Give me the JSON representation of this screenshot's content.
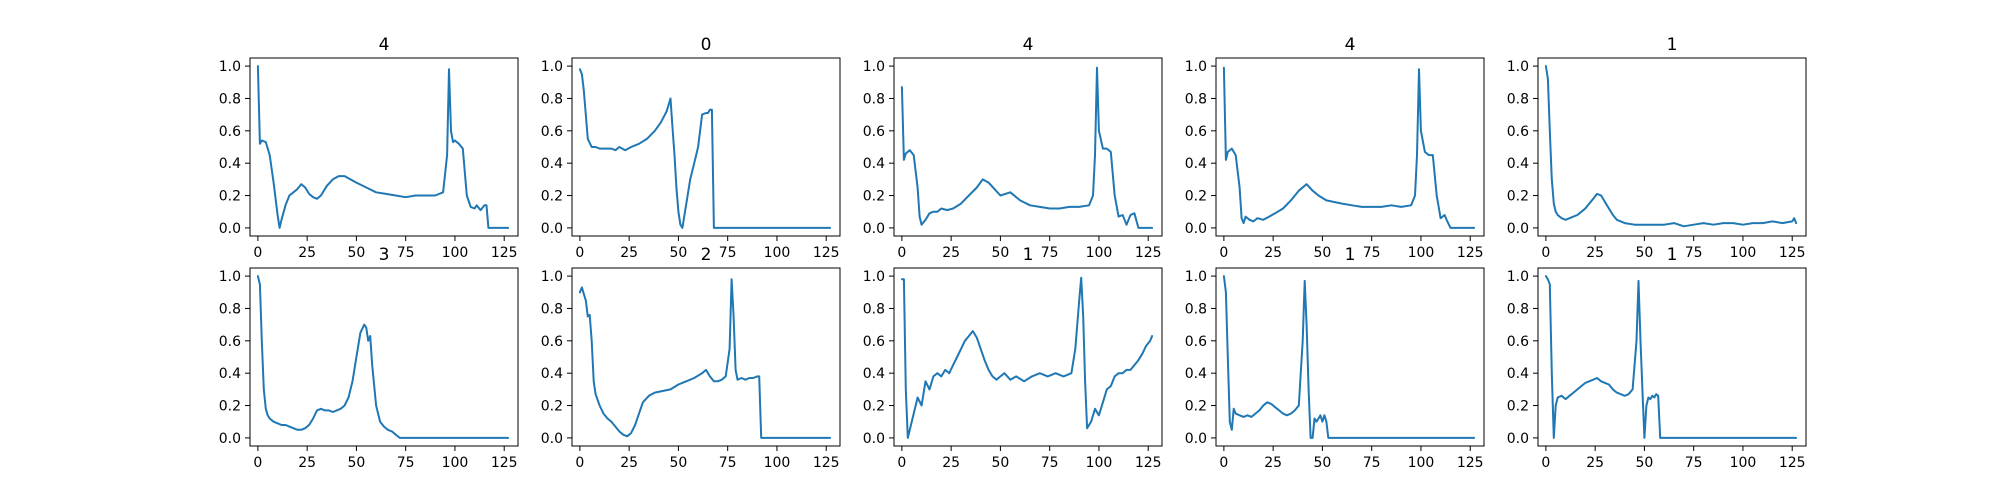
{
  "colors": {
    "series": "#1f77b4",
    "axes": "#000000",
    "background": "#ffffff"
  },
  "chart_data": {
    "type": "line",
    "layout": "grid 2 rows x 5 columns of small multiples",
    "grid": false,
    "shared_axes": {
      "xlim": [
        -4,
        132
      ],
      "ylim": [
        -0.05,
        1.05
      ],
      "xticks": [
        0,
        25,
        50,
        75,
        100,
        125
      ],
      "yticks": [
        0.0,
        0.2,
        0.4,
        0.6,
        0.8,
        1.0
      ],
      "xtick_labels": [
        "0",
        "25",
        "50",
        "75",
        "100",
        "125"
      ],
      "ytick_labels": [
        "0.0",
        "0.2",
        "0.4",
        "0.6",
        "0.8",
        "1.0"
      ]
    },
    "panels": [
      {
        "title": "4",
        "x": [
          0,
          1,
          2,
          4,
          6,
          8,
          10,
          11,
          12,
          14,
          16,
          18,
          20,
          22,
          24,
          26,
          28,
          30,
          32,
          35,
          38,
          41,
          44,
          47,
          50,
          55,
          60,
          65,
          70,
          75,
          80,
          85,
          90,
          94,
          96,
          97,
          98,
          99,
          100,
          102,
          104,
          106,
          108,
          110,
          111,
          113,
          115,
          116,
          117,
          119,
          122,
          125,
          127
        ],
        "values": [
          1.0,
          0.52,
          0.54,
          0.53,
          0.45,
          0.28,
          0.08,
          0.0,
          0.05,
          0.14,
          0.2,
          0.22,
          0.24,
          0.27,
          0.25,
          0.21,
          0.19,
          0.18,
          0.2,
          0.26,
          0.3,
          0.32,
          0.32,
          0.3,
          0.28,
          0.25,
          0.22,
          0.21,
          0.2,
          0.19,
          0.2,
          0.2,
          0.2,
          0.22,
          0.45,
          0.98,
          0.6,
          0.53,
          0.54,
          0.52,
          0.49,
          0.2,
          0.13,
          0.12,
          0.14,
          0.11,
          0.14,
          0.14,
          0.0,
          0.0,
          0.0,
          0.0,
          0.0
        ]
      },
      {
        "title": "0",
        "x": [
          0,
          1,
          2,
          3,
          4,
          6,
          8,
          10,
          13,
          16,
          18,
          20,
          23,
          26,
          30,
          34,
          38,
          41,
          44,
          46,
          47,
          48,
          49,
          50,
          51,
          52,
          54,
          56,
          58,
          60,
          61,
          62,
          64,
          65,
          66,
          67,
          68,
          70,
          75,
          80,
          90,
          100,
          110,
          120,
          127
        ],
        "values": [
          0.98,
          0.95,
          0.85,
          0.7,
          0.55,
          0.5,
          0.5,
          0.49,
          0.49,
          0.49,
          0.48,
          0.5,
          0.48,
          0.5,
          0.52,
          0.55,
          0.6,
          0.65,
          0.72,
          0.8,
          0.62,
          0.45,
          0.25,
          0.1,
          0.02,
          0.0,
          0.15,
          0.3,
          0.4,
          0.5,
          0.6,
          0.7,
          0.71,
          0.71,
          0.73,
          0.73,
          0.0,
          0.0,
          0.0,
          0.0,
          0.0,
          0.0,
          0.0,
          0.0,
          0.0
        ]
      },
      {
        "title": "4",
        "x": [
          0,
          1,
          2,
          4,
          6,
          8,
          9,
          10,
          12,
          14,
          16,
          18,
          20,
          23,
          26,
          30,
          34,
          38,
          41,
          44,
          47,
          50,
          55,
          60,
          65,
          70,
          75,
          80,
          85,
          90,
          95,
          97,
          98,
          99,
          100,
          102,
          104,
          106,
          108,
          110,
          112,
          113,
          114,
          116,
          118,
          120,
          122,
          125,
          127
        ],
        "values": [
          0.87,
          0.42,
          0.46,
          0.48,
          0.45,
          0.25,
          0.07,
          0.02,
          0.05,
          0.09,
          0.1,
          0.1,
          0.12,
          0.11,
          0.12,
          0.15,
          0.2,
          0.25,
          0.3,
          0.28,
          0.24,
          0.2,
          0.22,
          0.17,
          0.14,
          0.13,
          0.12,
          0.12,
          0.13,
          0.13,
          0.14,
          0.2,
          0.45,
          0.99,
          0.6,
          0.49,
          0.49,
          0.47,
          0.2,
          0.07,
          0.08,
          0.05,
          0.02,
          0.08,
          0.09,
          0.0,
          0.0,
          0.0,
          0.0
        ]
      },
      {
        "title": "4",
        "x": [
          0,
          1,
          2,
          4,
          6,
          8,
          9,
          10,
          11,
          13,
          15,
          17,
          20,
          23,
          26,
          30,
          34,
          38,
          42,
          45,
          48,
          52,
          56,
          60,
          65,
          70,
          75,
          80,
          85,
          90,
          95,
          97,
          98,
          99,
          100,
          102,
          104,
          106,
          108,
          110,
          112,
          113,
          115,
          117,
          119,
          122,
          125,
          127
        ],
        "values": [
          0.99,
          0.42,
          0.47,
          0.49,
          0.45,
          0.25,
          0.06,
          0.03,
          0.07,
          0.05,
          0.04,
          0.06,
          0.05,
          0.07,
          0.09,
          0.12,
          0.17,
          0.23,
          0.27,
          0.23,
          0.2,
          0.17,
          0.16,
          0.15,
          0.14,
          0.13,
          0.13,
          0.13,
          0.14,
          0.13,
          0.14,
          0.2,
          0.45,
          0.98,
          0.6,
          0.47,
          0.45,
          0.45,
          0.2,
          0.06,
          0.08,
          0.05,
          0.0,
          0.0,
          0.0,
          0.0,
          0.0,
          0.0
        ]
      },
      {
        "title": "1",
        "x": [
          0,
          1,
          2,
          3,
          4,
          5,
          6,
          8,
          10,
          12,
          14,
          16,
          18,
          20,
          22,
          24,
          26,
          28,
          30,
          32,
          34,
          36,
          38,
          40,
          45,
          50,
          55,
          60,
          65,
          70,
          75,
          80,
          85,
          90,
          95,
          100,
          105,
          110,
          115,
          120,
          125,
          126,
          127
        ],
        "values": [
          1.0,
          0.92,
          0.6,
          0.3,
          0.15,
          0.1,
          0.08,
          0.06,
          0.05,
          0.06,
          0.07,
          0.08,
          0.1,
          0.12,
          0.15,
          0.18,
          0.21,
          0.2,
          0.16,
          0.12,
          0.08,
          0.05,
          0.04,
          0.03,
          0.02,
          0.02,
          0.02,
          0.02,
          0.03,
          0.01,
          0.02,
          0.03,
          0.02,
          0.03,
          0.03,
          0.02,
          0.03,
          0.03,
          0.04,
          0.03,
          0.04,
          0.06,
          0.03
        ]
      },
      {
        "title": "3",
        "x": [
          0,
          1,
          2,
          3,
          4,
          5,
          6,
          8,
          10,
          12,
          14,
          16,
          18,
          20,
          22,
          24,
          26,
          28,
          30,
          32,
          34,
          36,
          38,
          40,
          42,
          44,
          46,
          48,
          50,
          52,
          54,
          55,
          56,
          57,
          58,
          60,
          62,
          64,
          66,
          68,
          70,
          72,
          75,
          80,
          90,
          100,
          110,
          120,
          127
        ],
        "values": [
          1.0,
          0.95,
          0.6,
          0.3,
          0.18,
          0.14,
          0.12,
          0.1,
          0.09,
          0.08,
          0.08,
          0.07,
          0.06,
          0.05,
          0.05,
          0.06,
          0.08,
          0.12,
          0.17,
          0.18,
          0.17,
          0.17,
          0.16,
          0.17,
          0.18,
          0.2,
          0.25,
          0.35,
          0.5,
          0.65,
          0.7,
          0.68,
          0.6,
          0.63,
          0.45,
          0.2,
          0.1,
          0.07,
          0.05,
          0.04,
          0.02,
          0.0,
          0.0,
          0.0,
          0.0,
          0.0,
          0.0,
          0.0,
          0.0
        ]
      },
      {
        "title": "2",
        "x": [
          0,
          1,
          2,
          3,
          4,
          5,
          6,
          7,
          8,
          10,
          12,
          14,
          16,
          18,
          20,
          22,
          24,
          26,
          28,
          30,
          32,
          35,
          38,
          42,
          46,
          50,
          54,
          58,
          62,
          64,
          66,
          68,
          70,
          72,
          74,
          76,
          77,
          78,
          79,
          80,
          82,
          84,
          86,
          88,
          90,
          91,
          92,
          95,
          100,
          110,
          120,
          127
        ],
        "values": [
          0.9,
          0.93,
          0.89,
          0.85,
          0.75,
          0.76,
          0.6,
          0.35,
          0.27,
          0.2,
          0.15,
          0.12,
          0.1,
          0.07,
          0.04,
          0.02,
          0.01,
          0.03,
          0.08,
          0.15,
          0.22,
          0.26,
          0.28,
          0.29,
          0.3,
          0.33,
          0.35,
          0.37,
          0.4,
          0.42,
          0.38,
          0.35,
          0.35,
          0.36,
          0.38,
          0.55,
          0.98,
          0.75,
          0.42,
          0.36,
          0.37,
          0.36,
          0.37,
          0.37,
          0.38,
          0.38,
          0.0,
          0.0,
          0.0,
          0.0,
          0.0,
          0.0
        ]
      },
      {
        "title": "1",
        "x": [
          0,
          1,
          2,
          3,
          4,
          6,
          8,
          10,
          12,
          14,
          16,
          18,
          20,
          22,
          24,
          26,
          28,
          30,
          32,
          34,
          36,
          38,
          40,
          42,
          44,
          46,
          48,
          50,
          52,
          55,
          58,
          62,
          66,
          70,
          74,
          78,
          82,
          86,
          88,
          90,
          91,
          92,
          93,
          94,
          96,
          98,
          100,
          102,
          104,
          106,
          108,
          110,
          112,
          114,
          116,
          118,
          120,
          122,
          124,
          126,
          127
        ],
        "values": [
          0.98,
          0.98,
          0.3,
          0.0,
          0.05,
          0.15,
          0.25,
          0.2,
          0.35,
          0.3,
          0.38,
          0.4,
          0.38,
          0.42,
          0.4,
          0.45,
          0.5,
          0.55,
          0.6,
          0.63,
          0.66,
          0.62,
          0.55,
          0.48,
          0.42,
          0.38,
          0.36,
          0.38,
          0.4,
          0.36,
          0.38,
          0.35,
          0.38,
          0.4,
          0.38,
          0.4,
          0.38,
          0.4,
          0.55,
          0.85,
          0.99,
          0.75,
          0.35,
          0.06,
          0.1,
          0.18,
          0.14,
          0.22,
          0.3,
          0.32,
          0.38,
          0.4,
          0.4,
          0.42,
          0.42,
          0.45,
          0.48,
          0.52,
          0.57,
          0.6,
          0.63
        ]
      },
      {
        "title": "1",
        "x": [
          0,
          1,
          2,
          3,
          4,
          5,
          6,
          8,
          10,
          12,
          14,
          16,
          18,
          20,
          22,
          24,
          26,
          28,
          30,
          32,
          34,
          36,
          38,
          40,
          41,
          42,
          43,
          44,
          45,
          46,
          47,
          48,
          49,
          50,
          51,
          52,
          53,
          55,
          60,
          70,
          80,
          90,
          100,
          110,
          120,
          127
        ],
        "values": [
          1.0,
          0.9,
          0.5,
          0.1,
          0.05,
          0.18,
          0.15,
          0.14,
          0.13,
          0.14,
          0.13,
          0.15,
          0.17,
          0.2,
          0.22,
          0.21,
          0.19,
          0.17,
          0.15,
          0.14,
          0.15,
          0.17,
          0.2,
          0.6,
          0.97,
          0.7,
          0.3,
          0.0,
          0.0,
          0.12,
          0.1,
          0.12,
          0.14,
          0.1,
          0.14,
          0.1,
          0.0,
          0.0,
          0.0,
          0.0,
          0.0,
          0.0,
          0.0,
          0.0,
          0.0,
          0.0
        ]
      },
      {
        "title": "1",
        "x": [
          0,
          1,
          2,
          3,
          4,
          5,
          6,
          8,
          10,
          12,
          14,
          16,
          18,
          20,
          22,
          24,
          26,
          28,
          30,
          32,
          34,
          36,
          38,
          40,
          42,
          44,
          46,
          47,
          48,
          49,
          50,
          51,
          52,
          53,
          54,
          55,
          56,
          57,
          58,
          60,
          70,
          80,
          90,
          100,
          110,
          120,
          127
        ],
        "values": [
          1.0,
          0.98,
          0.95,
          0.4,
          0.0,
          0.2,
          0.25,
          0.26,
          0.24,
          0.26,
          0.28,
          0.3,
          0.32,
          0.34,
          0.35,
          0.36,
          0.37,
          0.35,
          0.34,
          0.33,
          0.3,
          0.28,
          0.27,
          0.26,
          0.27,
          0.3,
          0.6,
          0.97,
          0.6,
          0.3,
          0.0,
          0.2,
          0.25,
          0.24,
          0.26,
          0.25,
          0.27,
          0.26,
          0.0,
          0.0,
          0.0,
          0.0,
          0.0,
          0.0,
          0.0,
          0.0,
          0.0
        ]
      }
    ]
  }
}
